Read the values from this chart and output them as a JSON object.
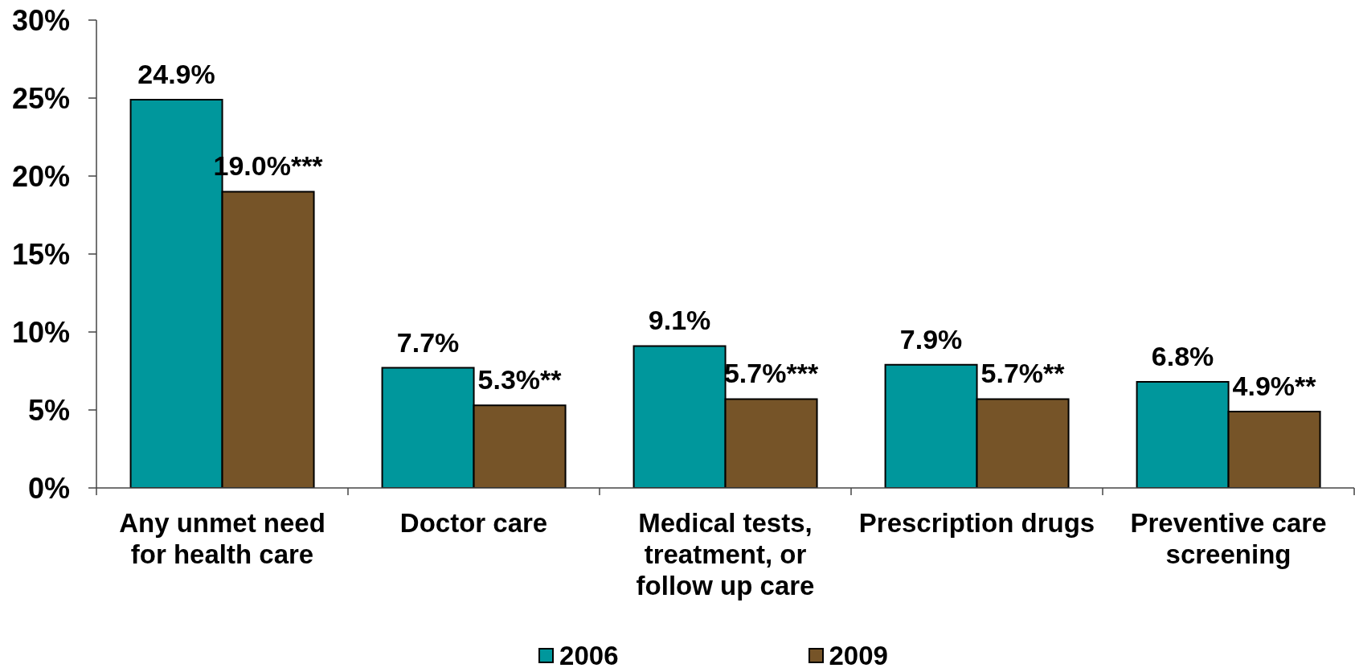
{
  "chart_data": {
    "type": "bar",
    "categories": [
      "Any unmet need for health care",
      "Doctor care",
      "Medical tests, treatment, or follow up care",
      "Prescription drugs",
      "Preventive care screening"
    ],
    "series": [
      {
        "name": "2006",
        "color": "#00979c",
        "values": [
          24.9,
          7.7,
          9.1,
          7.9,
          6.8
        ],
        "value_labels": [
          "24.9%",
          "7.7%",
          "9.1%",
          "7.9%",
          "6.8%"
        ]
      },
      {
        "name": "2009",
        "color": "#765428",
        "values": [
          19.0,
          5.3,
          5.7,
          5.7,
          4.9
        ],
        "value_labels": [
          "19.0%***",
          "5.3%**",
          "5.7%***",
          "5.7%**",
          "4.9%**"
        ]
      }
    ],
    "ylim": [
      0,
      30
    ],
    "yticks": [
      {
        "value": 0,
        "label": "0%"
      },
      {
        "value": 5,
        "label": "5%"
      },
      {
        "value": 10,
        "label": "10%"
      },
      {
        "value": 15,
        "label": "15%"
      },
      {
        "value": 20,
        "label": "20%"
      },
      {
        "value": 25,
        "label": "25%"
      },
      {
        "value": 30,
        "label": "30%"
      }
    ],
    "legend": "bottom"
  }
}
